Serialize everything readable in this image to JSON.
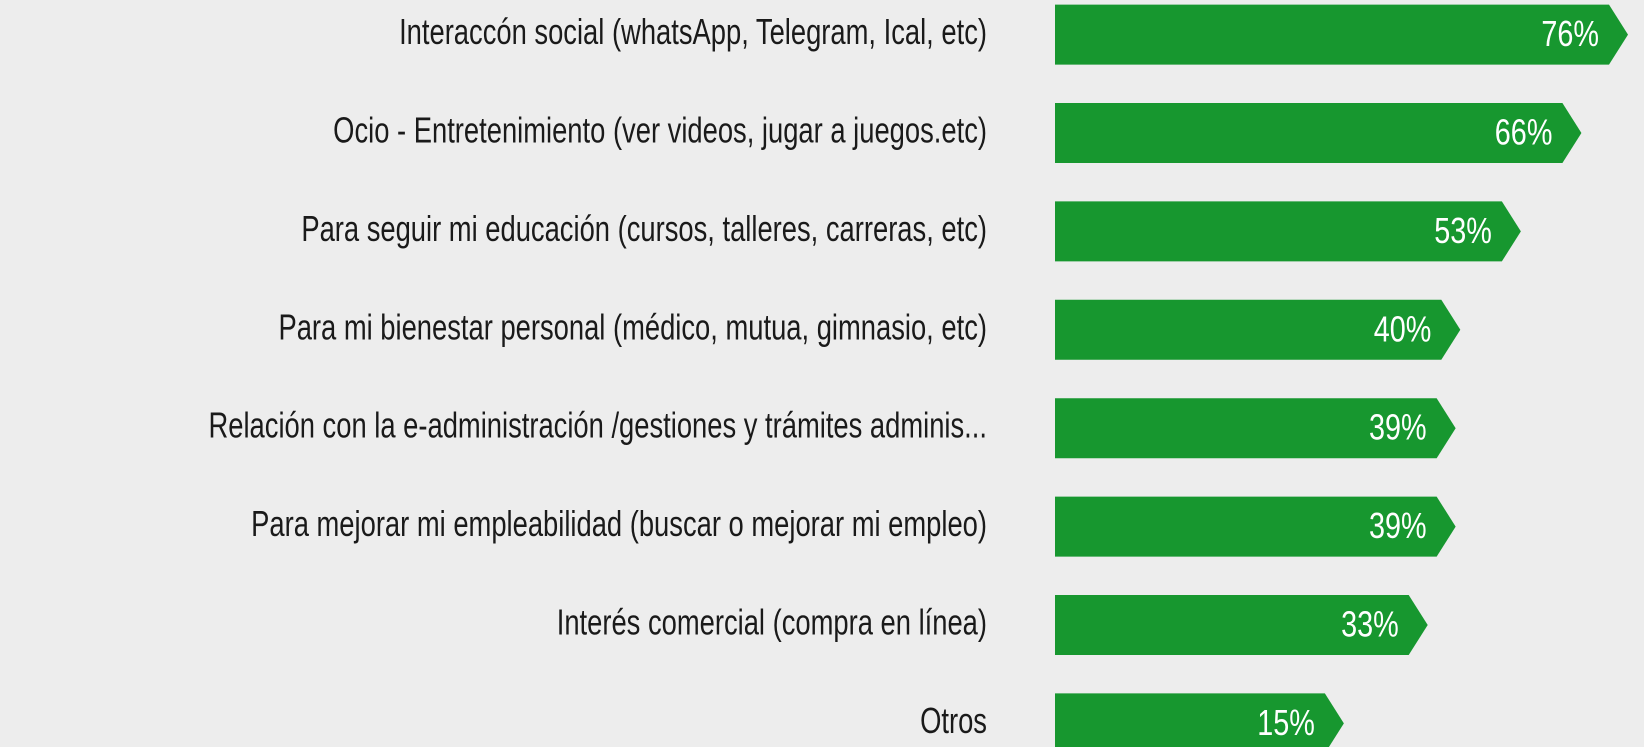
{
  "chart_data": {
    "type": "bar",
    "orientation": "horizontal",
    "color": "#17972f",
    "categories": [
      "Interaccón social (whatsApp, Telegram, Ical, etc)",
      "Ocio - Entretenimiento (ver videos, jugar a juegos.etc)",
      "Para seguir mi educación (cursos, talleres, carreras, etc)",
      "Para mi bienestar personal (médico, mutua, gimnasio, etc)",
      "Relación con la e-administración /gestiones y trámites adminis...",
      "Para mejorar mi empleabilidad (buscar o mejorar mi empleo)",
      "Interés comercial (compra en línea)",
      "Otros"
    ],
    "values": [
      76,
      66,
      53,
      40,
      39,
      39,
      33,
      15
    ],
    "value_labels": [
      "76%",
      "66%",
      "53%",
      "40%",
      "39%",
      "39%",
      "33%",
      "15%"
    ]
  }
}
